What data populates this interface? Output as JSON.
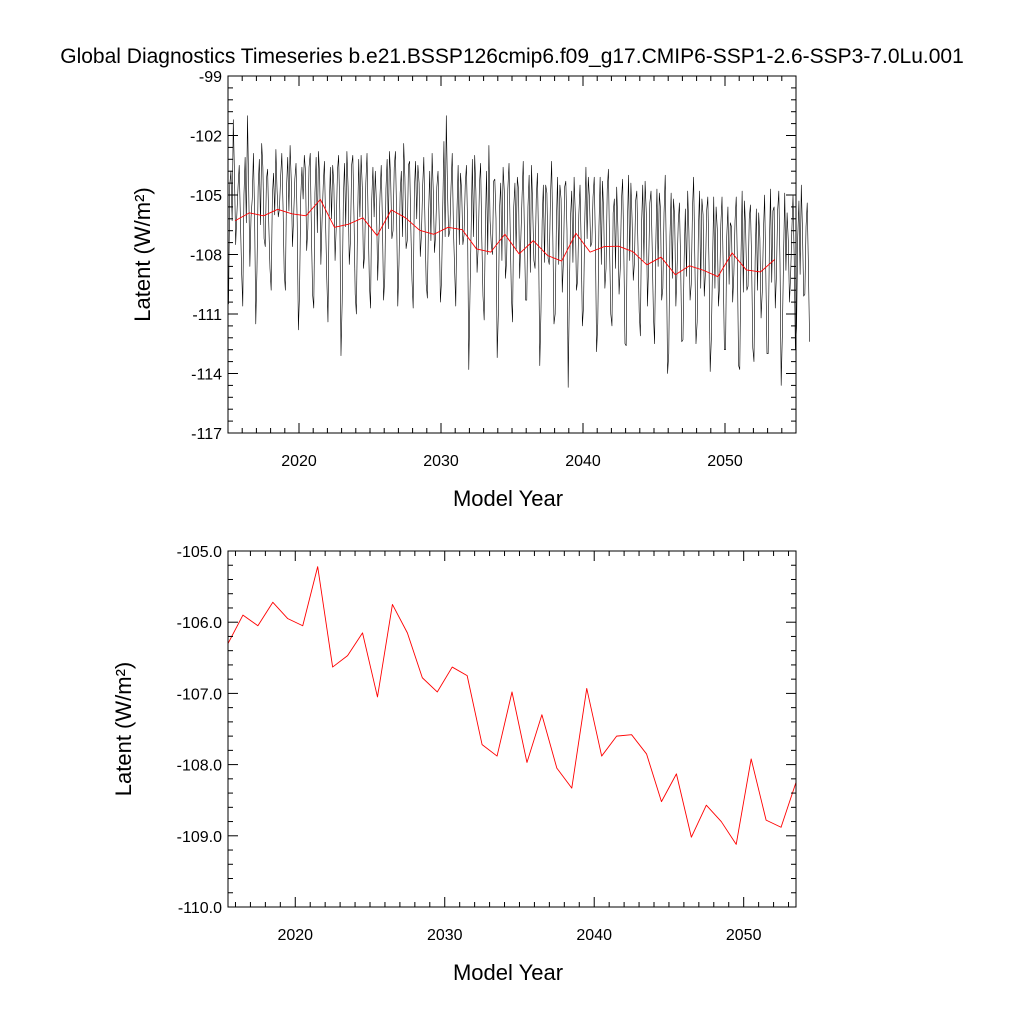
{
  "title": "Global Diagnostics Timeseries b.e21.BSSP126cmip6.f09_g17.CMIP6-SSP1-2.6-SSP3-7.0Lu.001",
  "colors": {
    "monthly": "#000000",
    "annual": "#ff0000"
  },
  "chart_data": [
    {
      "type": "line",
      "xlabel": "Model Year",
      "ylabel": "Latent (W/m²)",
      "xlim": [
        2015,
        2055
      ],
      "ylim": [
        -117,
        -99
      ],
      "xticks": [
        2020,
        2030,
        2040,
        2050
      ],
      "xtick_labels": [
        "2020",
        "2030",
        "2040",
        "2050"
      ],
      "yticks": [
        -117,
        -114,
        -111,
        -108,
        -105,
        -102,
        -99
      ],
      "ytick_labels": [
        "-117",
        "-114",
        "-111",
        "-108",
        "-105",
        "-102",
        "-99"
      ],
      "grid": false,
      "series": [
        {
          "kind": "monthly",
          "color": "#000000",
          "x_start": 2015.04,
          "x_step": 0.0833333,
          "values": [
            -110.5,
            -104.5,
            -103.8,
            -106.3,
            -101.2,
            -104.0,
            -107.5,
            -106.0,
            -104.6,
            -103.5,
            -106.2,
            -108.8,
            -110.6,
            -105.0,
            -103.1,
            -106.4,
            -101.0,
            -104.6,
            -108.6,
            -106.1,
            -105.2,
            -102.9,
            -106.0,
            -111.5,
            -108.8,
            -104.6,
            -103.2,
            -106.5,
            -102.4,
            -103.6,
            -107.2,
            -107.6,
            -104.2,
            -103.7,
            -106.5,
            -108.7,
            -109.8,
            -105.1,
            -103.9,
            -106.0,
            -102.7,
            -104.8,
            -106.1,
            -105.7,
            -104.1,
            -102.9,
            -105.5,
            -108.9,
            -109.8,
            -104.6,
            -103.1,
            -105.8,
            -102.5,
            -104.3,
            -107.6,
            -106.1,
            -104.2,
            -103.4,
            -106.4,
            -111.8,
            -109.9,
            -105.1,
            -103.6,
            -105.2,
            -103.0,
            -103.8,
            -107.8,
            -106.7,
            -103.6,
            -102.9,
            -106.8,
            -110.0,
            -110.7,
            -104.9,
            -103.1,
            -106.9,
            -102.8,
            -104.1,
            -108.5,
            -106.3,
            -104.5,
            -103.3,
            -106.4,
            -109.2,
            -111.4,
            -105.9,
            -103.6,
            -106.2,
            -103.5,
            -104.5,
            -108.3,
            -106.6,
            -103.8,
            -103.0,
            -105.8,
            -113.1,
            -110.4,
            -105.2,
            -103.4,
            -106.6,
            -102.8,
            -104.6,
            -108.5,
            -107.3,
            -103.5,
            -103.0,
            -106.1,
            -110.0,
            -111.0,
            -106.3,
            -103.2,
            -106.1,
            -103.0,
            -104.6,
            -108.7,
            -108.0,
            -104.4,
            -102.9,
            -106.3,
            -109.5,
            -110.7,
            -105.2,
            -103.6,
            -106.1,
            -103.8,
            -105.5,
            -109.3,
            -107.3,
            -105.0,
            -103.5,
            -106.3,
            -110.3,
            -109.2,
            -104.7,
            -103.2,
            -106.7,
            -102.8,
            -104.2,
            -107.2,
            -106.8,
            -103.6,
            -102.8,
            -106.0,
            -110.6,
            -108.5,
            -104.9,
            -103.8,
            -107.1,
            -102.4,
            -104.1,
            -107.7,
            -107.3,
            -103.5,
            -103.3,
            -106.6,
            -109.3,
            -110.7,
            -104.8,
            -103.3,
            -106.2,
            -103.5,
            -104.4,
            -108.1,
            -107.0,
            -104.6,
            -103.1,
            -106.4,
            -109.5,
            -110.2,
            -106.0,
            -103.8,
            -107.3,
            -102.9,
            -104.8,
            -107.9,
            -107.0,
            -104.6,
            -103.8,
            -106.3,
            -110.4,
            -109.3,
            -105.6,
            -102.3,
            -107.1,
            -101.0,
            -104.7,
            -107.1,
            -106.8,
            -104.6,
            -102.9,
            -106.6,
            -108.7,
            -110.6,
            -105.8,
            -103.5,
            -107.5,
            -103.9,
            -104.8,
            -107.5,
            -107.0,
            -104.5,
            -103.5,
            -106.6,
            -113.8,
            -110.1,
            -106.7,
            -103.2,
            -107.1,
            -103.0,
            -104.8,
            -108.9,
            -107.6,
            -104.5,
            -103.4,
            -107.2,
            -110.1,
            -111.3,
            -106.7,
            -103.8,
            -108.0,
            -102.5,
            -106.3,
            -107.5,
            -108.0,
            -104.3,
            -104.2,
            -106.2,
            -113.2,
            -110.9,
            -105.7,
            -104.4,
            -108.3,
            -103.6,
            -104.8,
            -109.2,
            -108.3,
            -104.7,
            -103.4,
            -106.8,
            -110.1,
            -111.4,
            -105.6,
            -104.4,
            -107.8,
            -104.1,
            -104.7,
            -109.2,
            -107.2,
            -105.1,
            -103.3,
            -106.9,
            -110.3,
            -110.3,
            -105.6,
            -104.0,
            -108.9,
            -103.5,
            -105.6,
            -108.3,
            -108.7,
            -105.2,
            -103.9,
            -107.5,
            -113.6,
            -110.9,
            -106.3,
            -104.5,
            -108.4,
            -104.5,
            -104.9,
            -108.2,
            -108.5,
            -105.2,
            -103.3,
            -107.0,
            -111.5,
            -111.0,
            -106.5,
            -104.1,
            -108.5,
            -104.5,
            -105.2,
            -109.9,
            -108.3,
            -104.6,
            -104.3,
            -106.8,
            -114.7,
            -110.0,
            -106.1,
            -104.8,
            -108.4,
            -104.1,
            -105.9,
            -109.8,
            -109.3,
            -106.0,
            -104.5,
            -107.5,
            -111.6,
            -110.6,
            -106.4,
            -103.6,
            -107.2,
            -104.1,
            -105.2,
            -107.6,
            -107.4,
            -105.1,
            -104.1,
            -107.3,
            -112.9,
            -111.5,
            -106.6,
            -104.1,
            -108.5,
            -104.3,
            -105.9,
            -109.7,
            -108.7,
            -104.7,
            -103.7,
            -107.7,
            -111.0,
            -111.6,
            -105.9,
            -105.2,
            -108.7,
            -104.6,
            -106.6,
            -110.0,
            -108.7,
            -105.3,
            -104.2,
            -107.8,
            -112.5,
            -112.6,
            -106.6,
            -104.0,
            -108.3,
            -104.4,
            -106.2,
            -109.3,
            -108.4,
            -105.3,
            -104.8,
            -107.6,
            -110.9,
            -112.1,
            -106.5,
            -104.5,
            -108.3,
            -104.3,
            -105.9,
            -110.6,
            -108.5,
            -105.4,
            -104.8,
            -107.7,
            -111.0,
            -112.5,
            -107.6,
            -104.7,
            -108.6,
            -104.9,
            -105.7,
            -110.3,
            -109.7,
            -105.9,
            -104.0,
            -108.2,
            -114.0,
            -113.0,
            -107.1,
            -104.9,
            -109.2,
            -105.2,
            -106.1,
            -110.6,
            -108.8,
            -106.4,
            -105.4,
            -108.3,
            -112.4,
            -112.3,
            -108.2,
            -105.7,
            -109.1,
            -104.8,
            -106.8,
            -110.3,
            -109.5,
            -105.8,
            -104.1,
            -108.1,
            -112.5,
            -111.4,
            -106.9,
            -104.8,
            -109.7,
            -105.2,
            -106.0,
            -110.1,
            -108.9,
            -105.8,
            -105.1,
            -108.4,
            -113.9,
            -112.2,
            -108.4,
            -105.1,
            -109.7,
            -105.6,
            -106.7,
            -110.6,
            -109.5,
            -106.5,
            -105.1,
            -108.6,
            -112.8,
            -112.8,
            -107.1,
            -105.6,
            -109.5,
            -106.4,
            -106.6,
            -110.4,
            -109.0,
            -106.3,
            -105.1,
            -108.5,
            -113.6,
            -113.8,
            -108.2,
            -104.8,
            -109.9,
            -105.3,
            -106.8,
            -109.8,
            -109.6,
            -106.2,
            -105.5,
            -108.3,
            -112.7,
            -113.4,
            -108.2,
            -105.7,
            -109.8,
            -105.9,
            -107.2,
            -111.2,
            -109.9,
            -106.9,
            -105.0,
            -108.9,
            -113.0,
            -113.0,
            -107.7,
            -104.7,
            -109.4,
            -105.8,
            -105.6,
            -110.7,
            -109.0,
            -105.8,
            -104.8,
            -108.4,
            -114.6,
            -112.0,
            -108.1,
            -104.9,
            -108.8,
            -105.9,
            -107.3,
            -110.4,
            -109.0,
            -106.8,
            -105.0,
            -108.2,
            -112.8,
            -111.7,
            -107.1,
            -105.3,
            -109.0,
            -104.5,
            -106.8,
            -110.1,
            -110.0,
            -106.6,
            -105.4,
            -108.6,
            -112.4
          ]
        },
        {
          "kind": "annual",
          "color": "#ff0000",
          "x": [
            2015.5,
            2016.5,
            2017.5,
            2018.5,
            2019.5,
            2020.5,
            2021.5,
            2022.5,
            2023.5,
            2024.5,
            2025.5,
            2026.5,
            2027.5,
            2028.5,
            2029.5,
            2030.5,
            2031.5,
            2032.5,
            2033.5,
            2034.5,
            2035.5,
            2036.5,
            2037.5,
            2038.5,
            2039.5,
            2040.5,
            2041.5,
            2042.5,
            2043.5,
            2044.5,
            2045.5,
            2046.5,
            2047.5,
            2048.5,
            2049.5,
            2050.5,
            2051.5,
            2052.5,
            2053.5
          ],
          "values": [
            -106.3,
            -105.9,
            -106.05,
            -105.72,
            -105.95,
            -106.05,
            -105.22,
            -106.63,
            -106.47,
            -106.15,
            -107.05,
            -105.75,
            -106.15,
            -106.78,
            -106.98,
            -106.63,
            -106.75,
            -107.72,
            -107.88,
            -106.98,
            -107.97,
            -107.3,
            -108.05,
            -108.33,
            -106.93,
            -107.88,
            -107.6,
            -107.58,
            -107.85,
            -108.52,
            -108.13,
            -109.02,
            -108.57,
            -108.8,
            -109.12,
            -107.92,
            -108.78,
            -108.88,
            -108.25
          ]
        }
      ]
    },
    {
      "type": "line",
      "xlabel": "Model Year",
      "ylabel": "Latent (W/m²)",
      "xlim": [
        2015.5,
        2053.5
      ],
      "ylim": [
        -110,
        -105
      ],
      "xticks": [
        2020,
        2030,
        2040,
        2050
      ],
      "xtick_labels": [
        "2020",
        "2030",
        "2040",
        "2050"
      ],
      "yticks": [
        -110,
        -109,
        -108,
        -107,
        -106,
        -105
      ],
      "ytick_labels": [
        "-110.0",
        "-109.0",
        "-108.0",
        "-107.0",
        "-106.0",
        "-105.0"
      ],
      "grid": false,
      "series": [
        {
          "kind": "annual",
          "color": "#ff0000",
          "x": [
            2015.5,
            2016.5,
            2017.5,
            2018.5,
            2019.5,
            2020.5,
            2021.5,
            2022.5,
            2023.5,
            2024.5,
            2025.5,
            2026.5,
            2027.5,
            2028.5,
            2029.5,
            2030.5,
            2031.5,
            2032.5,
            2033.5,
            2034.5,
            2035.5,
            2036.5,
            2037.5,
            2038.5,
            2039.5,
            2040.5,
            2041.5,
            2042.5,
            2043.5,
            2044.5,
            2045.5,
            2046.5,
            2047.5,
            2048.5,
            2049.5,
            2050.5,
            2051.5,
            2052.5,
            2053.5
          ],
          "values": [
            -106.3,
            -105.9,
            -106.05,
            -105.72,
            -105.95,
            -106.05,
            -105.22,
            -106.63,
            -106.47,
            -106.15,
            -107.05,
            -105.75,
            -106.15,
            -106.78,
            -106.98,
            -106.63,
            -106.75,
            -107.72,
            -107.88,
            -106.98,
            -107.97,
            -107.3,
            -108.05,
            -108.33,
            -106.93,
            -107.88,
            -107.6,
            -107.58,
            -107.85,
            -108.52,
            -108.13,
            -109.02,
            -108.57,
            -108.8,
            -109.12,
            -107.92,
            -108.78,
            -108.88,
            -108.25
          ]
        }
      ]
    }
  ]
}
